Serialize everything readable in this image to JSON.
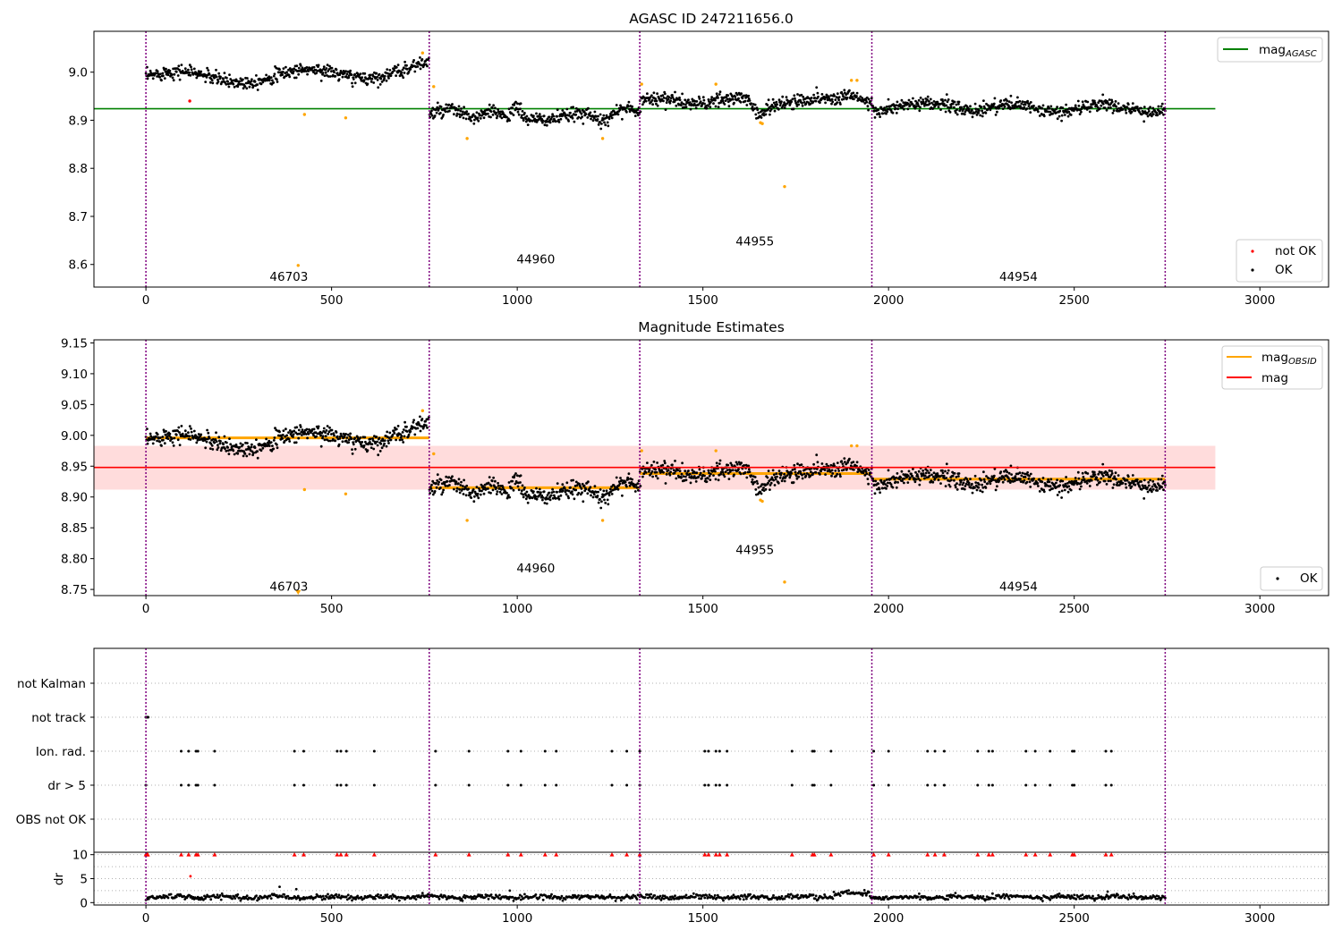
{
  "chart_data": [
    {
      "type": "scatter",
      "title": "AGASC ID 247211656.0",
      "xlabel": "",
      "ylabel": "",
      "xlim": [
        -140,
        3185
      ],
      "ylim": [
        8.553,
        9.085
      ],
      "xticks": [
        "0",
        "500",
        "1000",
        "1500",
        "2000",
        "2500",
        "3000"
      ],
      "yticks": [
        "8.6",
        "8.7",
        "8.8",
        "8.9",
        "9.0"
      ],
      "hlines": [
        {
          "name": "mag",
          "sub": "AGASC",
          "y": 8.924,
          "x0": -140,
          "x1": 2880,
          "color": "#008000"
        }
      ],
      "legend_lines": [
        {
          "name": "mag",
          "sub": "AGASC",
          "color": "#008000"
        }
      ],
      "legend_points": [
        {
          "name": "not OK",
          "color": "#ff0000"
        },
        {
          "name": "OK",
          "color": "#000000"
        }
      ],
      "obsid_labels": [
        {
          "text": "46703",
          "x": 385,
          "y": 8.575
        },
        {
          "text": "44960",
          "x": 1050,
          "y": 8.612
        },
        {
          "text": "44955",
          "x": 1640,
          "y": 8.649
        },
        {
          "text": "44954",
          "x": 2350,
          "y": 8.575
        }
      ]
    },
    {
      "type": "scatter",
      "title": "Magnitude Estimates",
      "xlabel": "",
      "ylabel": "",
      "xlim": [
        -140,
        3185
      ],
      "ylim": [
        8.74,
        9.155
      ],
      "xticks": [
        "0",
        "500",
        "1000",
        "1500",
        "2000",
        "2500",
        "3000"
      ],
      "yticks": [
        "8.75",
        "8.80",
        "8.85",
        "8.90",
        "8.95",
        "9.00",
        "9.05",
        "9.10",
        "9.15"
      ],
      "band": {
        "y0": 8.912,
        "y1": 8.983,
        "x0": -140,
        "x1": 2880,
        "color": "#ffdcdc"
      },
      "hlines": [
        {
          "name": "mag",
          "y": 8.948,
          "x0": -140,
          "x1": 2880,
          "color": "#ff0000"
        }
      ],
      "obsid_means": [
        {
          "x0": 0,
          "x1": 763,
          "y": 8.996
        },
        {
          "x0": 763,
          "x1": 1330,
          "y": 8.915
        },
        {
          "x0": 1330,
          "x1": 1955,
          "y": 8.938
        },
        {
          "x0": 1955,
          "x1": 2745,
          "y": 8.929
        }
      ],
      "legend_lines": [
        {
          "name": "mag",
          "sub": "OBSID",
          "color": "#ffa500"
        },
        {
          "name": "mag",
          "color": "#ff0000"
        }
      ],
      "legend_points": [
        {
          "name": "OK",
          "color": "#000000"
        }
      ],
      "obsid_labels": [
        {
          "text": "46703",
          "x": 385,
          "y": 8.755
        },
        {
          "text": "44960",
          "x": 1050,
          "y": 8.785
        },
        {
          "text": "44955",
          "x": 1640,
          "y": 8.815
        },
        {
          "text": "44954",
          "x": 2350,
          "y": 8.755
        }
      ]
    },
    {
      "type": "scatter",
      "title": "",
      "xlim": [
        -140,
        3185
      ],
      "categories": [
        "OBS not OK",
        "dr > 5",
        "Ion. rad.",
        "not track",
        "not Kalman"
      ],
      "flag_x": [
        95,
        115,
        135,
        140,
        185,
        400,
        425,
        515,
        525,
        540,
        615,
        780,
        870,
        975,
        1010,
        1075,
        1105,
        1255,
        1295,
        1330,
        1505,
        1515,
        1535,
        1545,
        1565,
        1740,
        1795,
        1800,
        1845,
        1960,
        2000,
        2105,
        2125,
        2150,
        2240,
        2270,
        2280,
        2370,
        2395,
        2435,
        2495,
        2500,
        2585,
        2600
      ]
    },
    {
      "type": "scatter",
      "title": "",
      "xlabel": "",
      "ylabel": "dr",
      "xlim": [
        -140,
        3185
      ],
      "ylim": [
        -0.5,
        10.5
      ],
      "xticks": [
        "0",
        "500",
        "1000",
        "1500",
        "2000",
        "2500",
        "3000"
      ],
      "yticks": [
        "0",
        "5",
        "10"
      ]
    }
  ],
  "obsid_boundaries": [
    0,
    763,
    1330,
    1955,
    2745
  ],
  "colors": {
    "ok": "#000000",
    "not_ok": "#ff0000",
    "outlier": "#ffa500",
    "boundary": "#800080",
    "grid": "#b0b0b0"
  }
}
